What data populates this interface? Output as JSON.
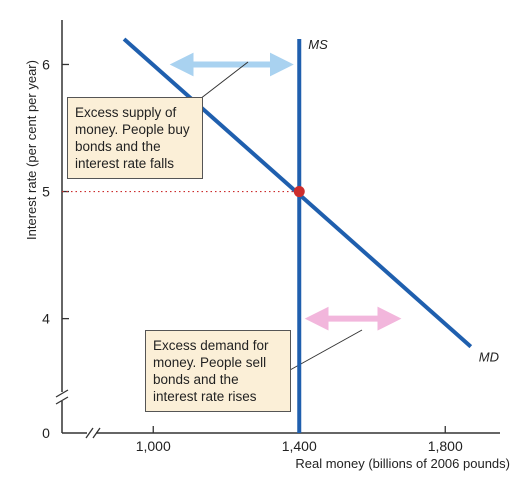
{
  "chart_data": {
    "type": "line",
    "xlabel": "Real money (billions of 2006 pounds)",
    "ylabel": "Interest rate (per cent per year)",
    "x_ticks": [
      1000,
      1400,
      1800
    ],
    "x_tick_labels": [
      "1,000",
      "1,400",
      "1,800"
    ],
    "y_ticks": [
      4,
      5,
      6
    ],
    "y_tick_labels": [
      "4",
      "5",
      "6"
    ],
    "origin_label": "0",
    "xlim": [
      750,
      1950
    ],
    "ylim": [
      3.1,
      6.35
    ],
    "axis_breaks": [
      "x",
      "y"
    ],
    "series": [
      {
        "name": "MS",
        "color": "#1f5fae",
        "x": [
          1400,
          1400
        ],
        "y": [
          3.1,
          6.2
        ]
      },
      {
        "name": "MD",
        "color": "#1f5fae",
        "x": [
          920,
          1870
        ],
        "y": [
          6.2,
          3.78
        ]
      }
    ],
    "equilibrium": {
      "x": 1400,
      "y": 5,
      "color": "#cc2d2d"
    },
    "highlight": {
      "x_label": "1,400",
      "y_label": "5",
      "color": "#cc2d2d"
    },
    "annotations": [
      {
        "id": "supply",
        "lines": [
          "Excess supply of",
          "money. People buy",
          "bonds and the",
          "interest rate falls"
        ],
        "arrow_color": "#a9d2f0",
        "arrow_x": [
          1045,
          1385
        ],
        "arrow_y": 6
      },
      {
        "id": "demand",
        "lines": [
          "Excess demand for",
          "money. People sell",
          "bonds and the",
          "interest rate rises"
        ],
        "arrow_color": "#f2b6dc",
        "arrow_x": [
          1415,
          1680
        ],
        "arrow_y": 4
      }
    ]
  }
}
